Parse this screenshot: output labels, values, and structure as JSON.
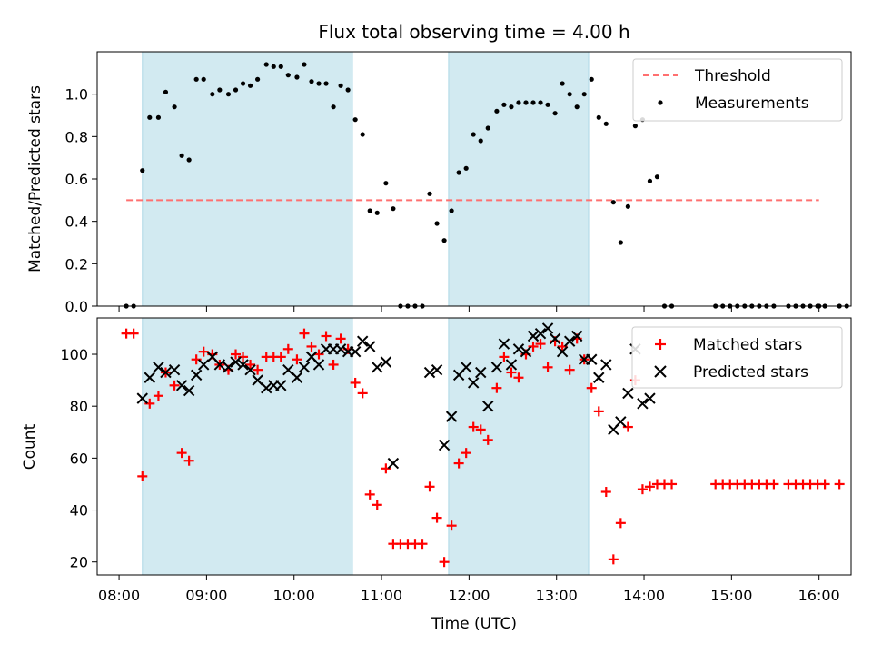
{
  "chart_data": {
    "type": "scatter",
    "title": "Flux total observing time = 4.00 h",
    "xlabel": "Time (UTC)",
    "x_ticks": [
      "08:00",
      "09:00",
      "10:00",
      "11:00",
      "12:00",
      "13:00",
      "14:00",
      "15:00",
      "16:00"
    ],
    "xlim": [
      "07:45",
      "16:22"
    ],
    "highlight_color": "#add8e6",
    "observing_windows": [
      [
        "08:16",
        "10:40"
      ],
      [
        "11:46",
        "13:22"
      ]
    ],
    "top_panel": {
      "ylabel": "Matched/Predicted stars",
      "ylim": [
        0,
        1.2
      ],
      "y_ticks": [
        "0.0",
        "0.2",
        "0.4",
        "0.6",
        "0.8",
        "1.0"
      ],
      "y_tick_values": [
        0,
        0.2,
        0.4,
        0.6,
        0.8,
        1.0
      ],
      "legend": [
        "Threshold",
        "Measurements"
      ],
      "legend_position": "top-right",
      "threshold": {
        "name": "Threshold",
        "value": 0.5,
        "x_range": [
          "08:05",
          "16:00"
        ],
        "color": "#ff7070",
        "style": "dashed"
      },
      "measurements": {
        "name": "Measurements",
        "color": "#000000",
        "points": [
          [
            "08:05",
            0.0
          ],
          [
            "08:10",
            0.0
          ],
          [
            "08:16",
            0.64
          ],
          [
            "08:21",
            0.89
          ],
          [
            "08:27",
            0.89
          ],
          [
            "08:32",
            1.01
          ],
          [
            "08:38",
            0.94
          ],
          [
            "08:43",
            0.71
          ],
          [
            "08:48",
            0.69
          ],
          [
            "08:53",
            1.07
          ],
          [
            "08:58",
            1.07
          ],
          [
            "09:04",
            1.0
          ],
          [
            "09:09",
            1.02
          ],
          [
            "09:15",
            1.0
          ],
          [
            "09:20",
            1.02
          ],
          [
            "09:25",
            1.05
          ],
          [
            "09:30",
            1.04
          ],
          [
            "09:35",
            1.07
          ],
          [
            "09:41",
            1.14
          ],
          [
            "09:46",
            1.13
          ],
          [
            "09:51",
            1.13
          ],
          [
            "09:56",
            1.09
          ],
          [
            "10:02",
            1.08
          ],
          [
            "10:07",
            1.14
          ],
          [
            "10:12",
            1.06
          ],
          [
            "10:17",
            1.05
          ],
          [
            "10:22",
            1.05
          ],
          [
            "10:27",
            0.94
          ],
          [
            "10:32",
            1.04
          ],
          [
            "10:37",
            1.02
          ],
          [
            "10:42",
            0.88
          ],
          [
            "10:47",
            0.81
          ],
          [
            "10:52",
            0.45
          ],
          [
            "10:57",
            0.44
          ],
          [
            "11:03",
            0.58
          ],
          [
            "11:08",
            0.46
          ],
          [
            "11:13",
            0.0
          ],
          [
            "11:18",
            0.0
          ],
          [
            "11:23",
            0.0
          ],
          [
            "11:28",
            0.0
          ],
          [
            "11:33",
            0.53
          ],
          [
            "11:38",
            0.39
          ],
          [
            "11:43",
            0.31
          ],
          [
            "11:48",
            0.45
          ],
          [
            "11:53",
            0.63
          ],
          [
            "11:58",
            0.65
          ],
          [
            "12:03",
            0.81
          ],
          [
            "12:08",
            0.78
          ],
          [
            "12:13",
            0.84
          ],
          [
            "12:19",
            0.92
          ],
          [
            "12:24",
            0.95
          ],
          [
            "12:29",
            0.94
          ],
          [
            "12:34",
            0.96
          ],
          [
            "12:39",
            0.96
          ],
          [
            "12:44",
            0.96
          ],
          [
            "12:49",
            0.96
          ],
          [
            "12:54",
            0.95
          ],
          [
            "12:59",
            0.91
          ],
          [
            "13:04",
            1.05
          ],
          [
            "13:09",
            1.0
          ],
          [
            "13:14",
            0.94
          ],
          [
            "13:19",
            1.0
          ],
          [
            "13:24",
            1.07
          ],
          [
            "13:29",
            0.89
          ],
          [
            "13:34",
            0.86
          ],
          [
            "13:39",
            0.49
          ],
          [
            "13:44",
            0.3
          ],
          [
            "13:49",
            0.47
          ],
          [
            "13:54",
            0.85
          ],
          [
            "13:59",
            0.88
          ],
          [
            "14:04",
            0.59
          ],
          [
            "14:09",
            0.61
          ],
          [
            "14:14",
            0.0
          ],
          [
            "14:19",
            0.0
          ],
          [
            "14:49",
            0.0
          ],
          [
            "14:54",
            0.0
          ],
          [
            "14:59",
            0.0
          ],
          [
            "15:04",
            0.0
          ],
          [
            "15:09",
            0.0
          ],
          [
            "15:14",
            0.0
          ],
          [
            "15:19",
            0.0
          ],
          [
            "15:24",
            0.0
          ],
          [
            "15:29",
            0.0
          ],
          [
            "15:39",
            0.0
          ],
          [
            "15:44",
            0.0
          ],
          [
            "15:49",
            0.0
          ],
          [
            "15:54",
            0.0
          ],
          [
            "15:59",
            0.0
          ],
          [
            "16:04",
            0.0
          ],
          [
            "16:14",
            0.0
          ],
          [
            "16:19",
            0.0
          ],
          [
            "16:00",
            0.0
          ]
        ]
      }
    },
    "bottom_panel": {
      "ylabel": "Count",
      "ylim": [
        15,
        114
      ],
      "y_ticks": [
        "20",
        "40",
        "60",
        "80",
        "100"
      ],
      "y_tick_values": [
        20,
        40,
        60,
        80,
        100
      ],
      "legend": [
        "Matched stars",
        "Predicted stars"
      ],
      "legend_position": "top-right",
      "matched": {
        "name": "Matched stars",
        "color": "#ff0000",
        "marker": "+",
        "points": [
          [
            "08:05",
            108
          ],
          [
            "08:10",
            108
          ],
          [
            "08:16",
            53
          ],
          [
            "08:21",
            81
          ],
          [
            "08:27",
            84
          ],
          [
            "08:32",
            93
          ],
          [
            "08:38",
            88
          ],
          [
            "08:43",
            62
          ],
          [
            "08:48",
            59
          ],
          [
            "08:53",
            98
          ],
          [
            "08:58",
            101
          ],
          [
            "09:04",
            100
          ],
          [
            "09:09",
            96
          ],
          [
            "09:15",
            94
          ],
          [
            "09:20",
            100
          ],
          [
            "09:25",
            99
          ],
          [
            "09:30",
            96
          ],
          [
            "09:35",
            94
          ],
          [
            "09:41",
            99
          ],
          [
            "09:46",
            99
          ],
          [
            "09:51",
            99
          ],
          [
            "09:56",
            102
          ],
          [
            "10:02",
            98
          ],
          [
            "10:07",
            108
          ],
          [
            "10:12",
            103
          ],
          [
            "10:17",
            100
          ],
          [
            "10:22",
            107
          ],
          [
            "10:27",
            96
          ],
          [
            "10:32",
            106
          ],
          [
            "10:37",
            102
          ],
          [
            "10:42",
            89
          ],
          [
            "10:47",
            85
          ],
          [
            "10:52",
            46
          ],
          [
            "10:57",
            42
          ],
          [
            "11:03",
            56
          ],
          [
            "11:08",
            27
          ],
          [
            "11:13",
            27
          ],
          [
            "11:18",
            27
          ],
          [
            "11:23",
            27
          ],
          [
            "11:28",
            27
          ],
          [
            "11:33",
            49
          ],
          [
            "11:38",
            37
          ],
          [
            "11:43",
            20
          ],
          [
            "11:48",
            34
          ],
          [
            "11:53",
            58
          ],
          [
            "11:58",
            62
          ],
          [
            "12:03",
            72
          ],
          [
            "12:08",
            71
          ],
          [
            "12:13",
            67
          ],
          [
            "12:19",
            87
          ],
          [
            "12:24",
            99
          ],
          [
            "12:29",
            93
          ],
          [
            "12:34",
            91
          ],
          [
            "12:39",
            100
          ],
          [
            "12:44",
            103
          ],
          [
            "12:49",
            104
          ],
          [
            "12:54",
            95
          ],
          [
            "12:59",
            105
          ],
          [
            "13:04",
            103
          ],
          [
            "13:09",
            94
          ],
          [
            "13:14",
            106
          ],
          [
            "13:19",
            98
          ],
          [
            "13:24",
            87
          ],
          [
            "13:29",
            78
          ],
          [
            "13:34",
            47
          ],
          [
            "13:39",
            21
          ],
          [
            "13:44",
            35
          ],
          [
            "13:49",
            72
          ],
          [
            "13:54",
            90
          ],
          [
            "13:59",
            48
          ],
          [
            "14:04",
            49
          ],
          [
            "14:09",
            50
          ],
          [
            "14:14",
            50
          ],
          [
            "14:19",
            50
          ],
          [
            "14:49",
            50
          ],
          [
            "14:54",
            50
          ],
          [
            "14:59",
            50
          ],
          [
            "15:04",
            50
          ],
          [
            "15:09",
            50
          ],
          [
            "15:14",
            50
          ],
          [
            "15:19",
            50
          ],
          [
            "15:24",
            50
          ],
          [
            "15:29",
            50
          ],
          [
            "15:39",
            50
          ],
          [
            "15:44",
            50
          ],
          [
            "15:49",
            50
          ],
          [
            "15:54",
            50
          ],
          [
            "15:59",
            50
          ],
          [
            "16:04",
            50
          ],
          [
            "16:14",
            50
          ]
        ]
      },
      "predicted": {
        "name": "Predicted stars",
        "color": "#000000",
        "marker": "x",
        "points": [
          [
            "08:16",
            83
          ],
          [
            "08:21",
            91
          ],
          [
            "08:27",
            95
          ],
          [
            "08:32",
            93
          ],
          [
            "08:38",
            94
          ],
          [
            "08:43",
            88
          ],
          [
            "08:48",
            86
          ],
          [
            "08:53",
            92
          ],
          [
            "08:58",
            96
          ],
          [
            "09:04",
            99
          ],
          [
            "09:09",
            96
          ],
          [
            "09:15",
            95
          ],
          [
            "09:20",
            97
          ],
          [
            "09:25",
            96
          ],
          [
            "09:30",
            94
          ],
          [
            "09:35",
            90
          ],
          [
            "09:41",
            87
          ],
          [
            "09:46",
            88
          ],
          [
            "09:51",
            88
          ],
          [
            "09:56",
            94
          ],
          [
            "10:02",
            91
          ],
          [
            "10:07",
            95
          ],
          [
            "10:12",
            99
          ],
          [
            "10:17",
            96
          ],
          [
            "10:22",
            102
          ],
          [
            "10:27",
            102
          ],
          [
            "10:32",
            102
          ],
          [
            "10:37",
            101
          ],
          [
            "10:42",
            101
          ],
          [
            "10:47",
            105
          ],
          [
            "10:52",
            103
          ],
          [
            "10:57",
            95
          ],
          [
            "11:03",
            97
          ],
          [
            "11:08",
            58
          ],
          [
            "11:33",
            93
          ],
          [
            "11:38",
            94
          ],
          [
            "11:43",
            65
          ],
          [
            "11:48",
            76
          ],
          [
            "11:53",
            92
          ],
          [
            "11:58",
            95
          ],
          [
            "12:03",
            89
          ],
          [
            "12:08",
            93
          ],
          [
            "12:13",
            80
          ],
          [
            "12:19",
            95
          ],
          [
            "12:24",
            104
          ],
          [
            "12:29",
            96
          ],
          [
            "12:34",
            102
          ],
          [
            "12:39",
            101
          ],
          [
            "12:44",
            107
          ],
          [
            "12:49",
            108
          ],
          [
            "12:54",
            110
          ],
          [
            "12:59",
            106
          ],
          [
            "13:04",
            101
          ],
          [
            "13:09",
            105
          ],
          [
            "13:14",
            107
          ],
          [
            "13:19",
            98
          ],
          [
            "13:24",
            98
          ],
          [
            "13:29",
            91
          ],
          [
            "13:34",
            96
          ],
          [
            "13:39",
            71
          ],
          [
            "13:44",
            74
          ],
          [
            "13:49",
            85
          ],
          [
            "13:54",
            102
          ],
          [
            "13:59",
            81
          ],
          [
            "14:04",
            83
          ]
        ]
      }
    }
  }
}
